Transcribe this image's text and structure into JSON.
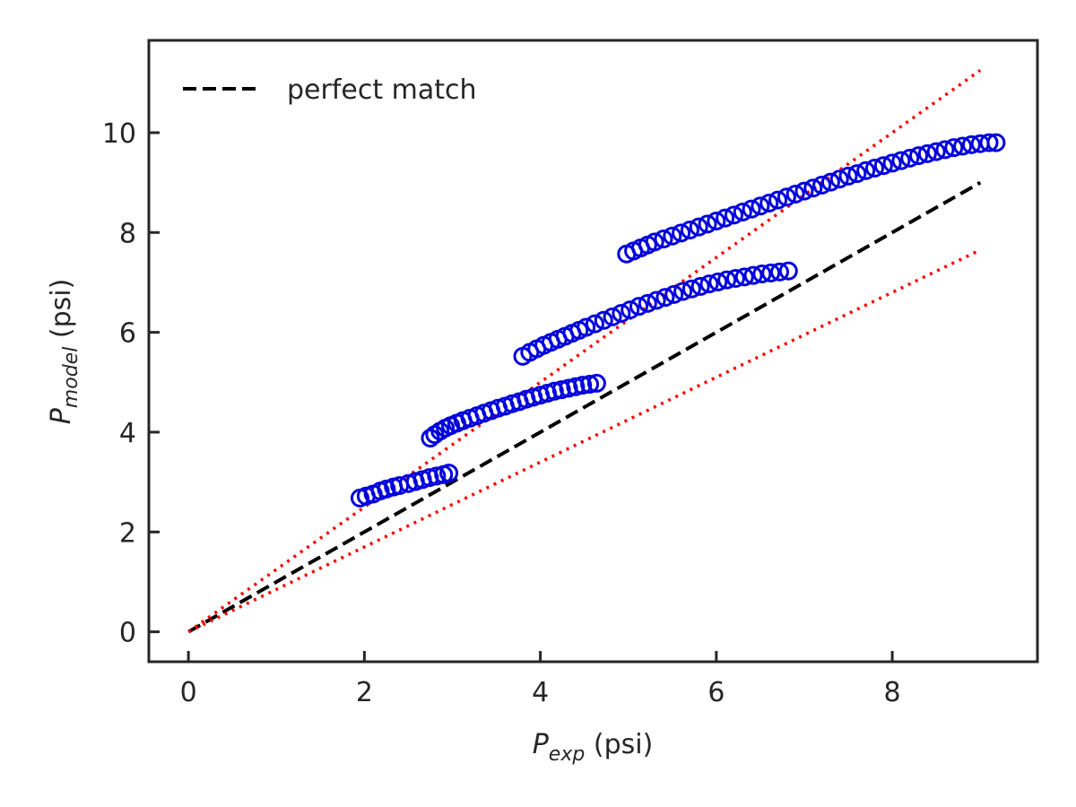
{
  "chart_data": {
    "type": "scatter",
    "title": "",
    "xlabel": {
      "main": "P",
      "sub": "exp",
      "unit": " (psi)"
    },
    "ylabel": {
      "main": "P",
      "sub": "model",
      "unit": " (psi)"
    },
    "xlim": [
      -0.45,
      9.65
    ],
    "ylim": [
      -0.6,
      11.85
    ],
    "xticks": [
      0,
      2,
      4,
      6,
      8
    ],
    "yticks": [
      0,
      2,
      4,
      6,
      8,
      10
    ],
    "grid": false,
    "legend": {
      "position": "top-left",
      "entries": [
        "perfect match"
      ]
    },
    "colors": {
      "points": "#0000dd",
      "perfect_match": "#000000",
      "bounds": "#ff0000",
      "frame": "#262626"
    },
    "series": [
      {
        "name": "",
        "kind": "scatter",
        "marker": "open-circle",
        "x": [
          1.95,
          2.02,
          2.1,
          2.18,
          2.25,
          2.33,
          2.4,
          2.5,
          2.58,
          2.66,
          2.74,
          2.82,
          2.9,
          2.96,
          2.75,
          2.8,
          2.86,
          2.92,
          2.98,
          3.05,
          3.12,
          3.2,
          3.28,
          3.36,
          3.44,
          3.52,
          3.6,
          3.68,
          3.76,
          3.84,
          3.92,
          4.0,
          4.08,
          4.16,
          4.24,
          4.32,
          4.4,
          4.48,
          4.56,
          4.64,
          3.8,
          3.88,
          3.96,
          4.04,
          4.12,
          4.2,
          4.28,
          4.36,
          4.44,
          4.52,
          4.62,
          4.72,
          4.82,
          4.92,
          5.02,
          5.12,
          5.22,
          5.32,
          5.42,
          5.52,
          5.62,
          5.72,
          5.82,
          5.92,
          6.02,
          6.12,
          6.22,
          6.32,
          6.42,
          6.52,
          6.62,
          6.72,
          6.82,
          4.98,
          5.06,
          5.14,
          5.22,
          5.3,
          5.4,
          5.5,
          5.6,
          5.7,
          5.8,
          5.9,
          6.0,
          6.1,
          6.2,
          6.3,
          6.4,
          6.5,
          6.6,
          6.7,
          6.8,
          6.9,
          7.0,
          7.1,
          7.2,
          7.3,
          7.4,
          7.5,
          7.6,
          7.7,
          7.8,
          7.9,
          8.0,
          8.1,
          8.2,
          8.3,
          8.4,
          8.5,
          8.6,
          8.7,
          8.8,
          8.9,
          9.0,
          9.1,
          9.18
        ],
        "y": [
          2.68,
          2.72,
          2.76,
          2.82,
          2.86,
          2.9,
          2.93,
          2.97,
          3.01,
          3.05,
          3.09,
          3.12,
          3.15,
          3.18,
          3.88,
          3.95,
          4.02,
          4.08,
          4.13,
          4.18,
          4.23,
          4.28,
          4.33,
          4.38,
          4.43,
          4.48,
          4.52,
          4.57,
          4.61,
          4.66,
          4.7,
          4.74,
          4.78,
          4.82,
          4.85,
          4.88,
          4.91,
          4.94,
          4.96,
          4.98,
          5.52,
          5.6,
          5.67,
          5.74,
          5.8,
          5.86,
          5.92,
          5.98,
          6.04,
          6.1,
          6.17,
          6.24,
          6.31,
          6.38,
          6.45,
          6.52,
          6.58,
          6.64,
          6.7,
          6.76,
          6.82,
          6.87,
          6.92,
          6.97,
          7.01,
          7.05,
          7.08,
          7.11,
          7.14,
          7.17,
          7.19,
          7.21,
          7.23,
          7.57,
          7.63,
          7.69,
          7.75,
          7.81,
          7.87,
          7.93,
          7.99,
          8.05,
          8.11,
          8.17,
          8.23,
          8.29,
          8.35,
          8.41,
          8.47,
          8.53,
          8.59,
          8.65,
          8.71,
          8.77,
          8.83,
          8.89,
          8.95,
          9.01,
          9.07,
          9.13,
          9.18,
          9.24,
          9.29,
          9.34,
          9.39,
          9.44,
          9.49,
          9.54,
          9.58,
          9.62,
          9.66,
          9.7,
          9.73,
          9.76,
          9.78,
          9.8,
          9.8
        ]
      },
      {
        "name": "perfect match",
        "kind": "line",
        "style": "dashed",
        "x": [
          0,
          9
        ],
        "y": [
          0,
          9
        ]
      },
      {
        "name": "",
        "kind": "line",
        "style": "dotted",
        "x": [
          0,
          9
        ],
        "y": [
          0,
          11.25
        ]
      },
      {
        "name": "",
        "kind": "line",
        "style": "dotted",
        "x": [
          0,
          9
        ],
        "y": [
          0,
          7.65
        ]
      }
    ]
  }
}
